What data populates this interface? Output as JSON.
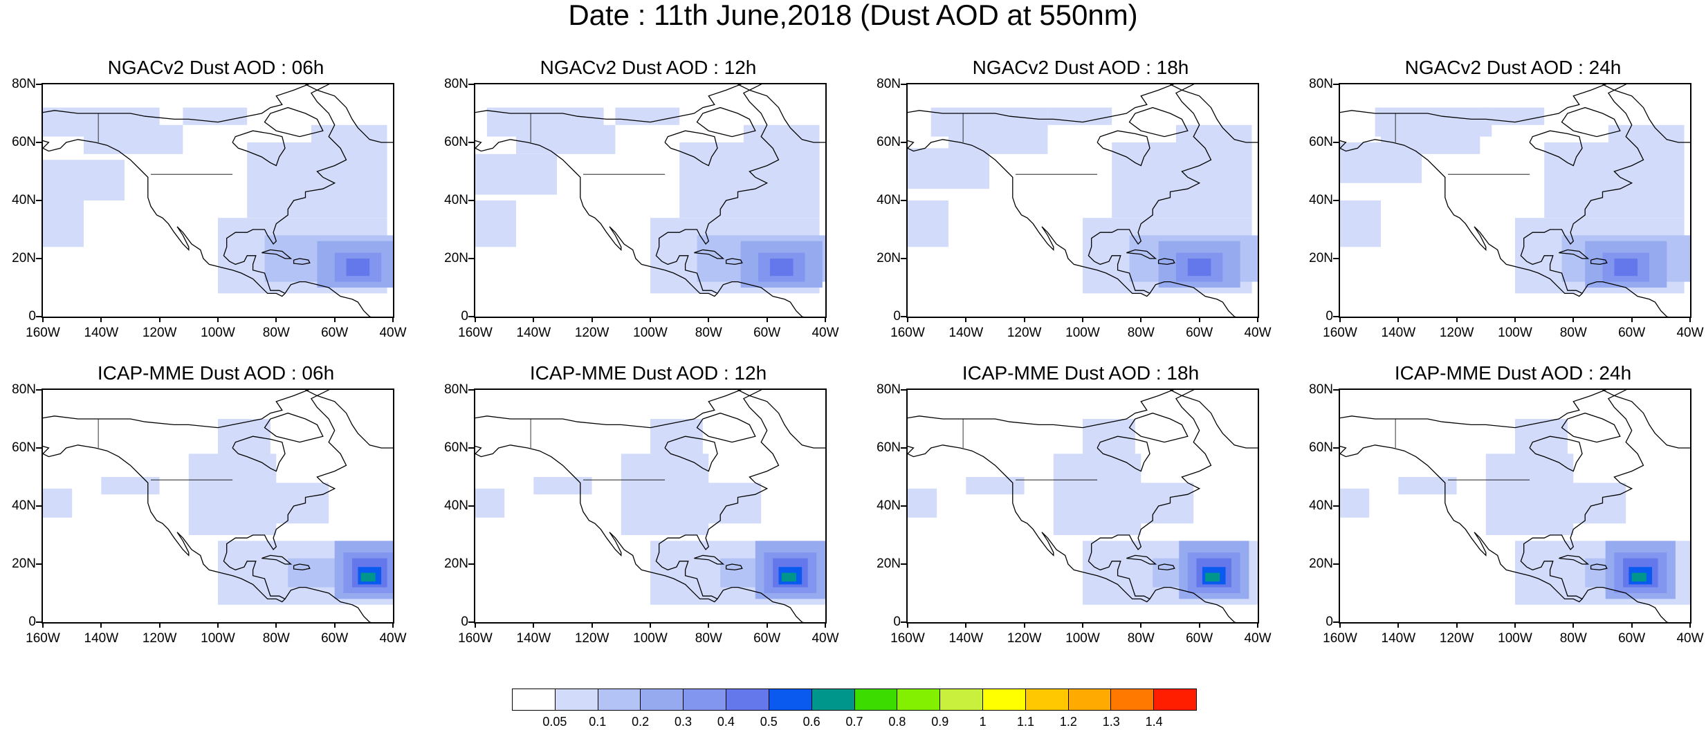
{
  "title": "Date : 11th June,2018 (Dust AOD at 550nm)",
  "lat_ticks": [
    "80N",
    "60N",
    "40N",
    "20N",
    "0"
  ],
  "lon_ticks": [
    "160W",
    "140W",
    "120W",
    "100W",
    "80W",
    "60W",
    "40W"
  ],
  "panels": [
    {
      "title": "NGACv2 Dust AOD : 06h",
      "model": "NGACv2",
      "hour": "06h",
      "core_center_lon": -52,
      "peak_aod": 0.5
    },
    {
      "title": "NGACv2 Dust AOD : 12h",
      "model": "NGACv2",
      "hour": "12h",
      "core_center_lon": -55,
      "peak_aod": 0.5
    },
    {
      "title": "NGACv2 Dust AOD : 18h",
      "model": "NGACv2",
      "hour": "18h",
      "core_center_lon": -60,
      "peak_aod": 0.5
    },
    {
      "title": "NGACv2 Dust AOD : 24h",
      "model": "NGACv2",
      "hour": "24h",
      "core_center_lon": -62,
      "peak_aod": 0.5
    },
    {
      "title": "ICAP-MME Dust AOD : 06h",
      "model": "ICAP-MME",
      "hour": "06h",
      "core_center_lon": -48,
      "peak_aod": 0.7
    },
    {
      "title": "ICAP-MME Dust AOD : 12h",
      "model": "ICAP-MME",
      "hour": "12h",
      "core_center_lon": -52,
      "peak_aod": 0.7
    },
    {
      "title": "ICAP-MME Dust AOD : 18h",
      "model": "ICAP-MME",
      "hour": "18h",
      "core_center_lon": -55,
      "peak_aod": 0.7
    },
    {
      "title": "ICAP-MME Dust AOD : 24h",
      "model": "ICAP-MME",
      "hour": "24h",
      "core_center_lon": -57,
      "peak_aod": 0.7
    }
  ],
  "colorbar": {
    "labels": [
      "0.05",
      "0.1",
      "0.2",
      "0.3",
      "0.4",
      "0.5",
      "0.6",
      "0.7",
      "0.8",
      "0.9",
      "1",
      "1.1",
      "1.2",
      "1.3",
      "1.4"
    ],
    "colors": [
      "#ffffff",
      "#d2dcfa",
      "#b4c3f5",
      "#96aaf0",
      "#8296f0",
      "#6478eb",
      "#0a5af0",
      "#00968c",
      "#3cdc00",
      "#82f000",
      "#c8f03c",
      "#ffff00",
      "#ffc800",
      "#ffaa00",
      "#ff7800",
      "#ff1e00"
    ]
  }
}
